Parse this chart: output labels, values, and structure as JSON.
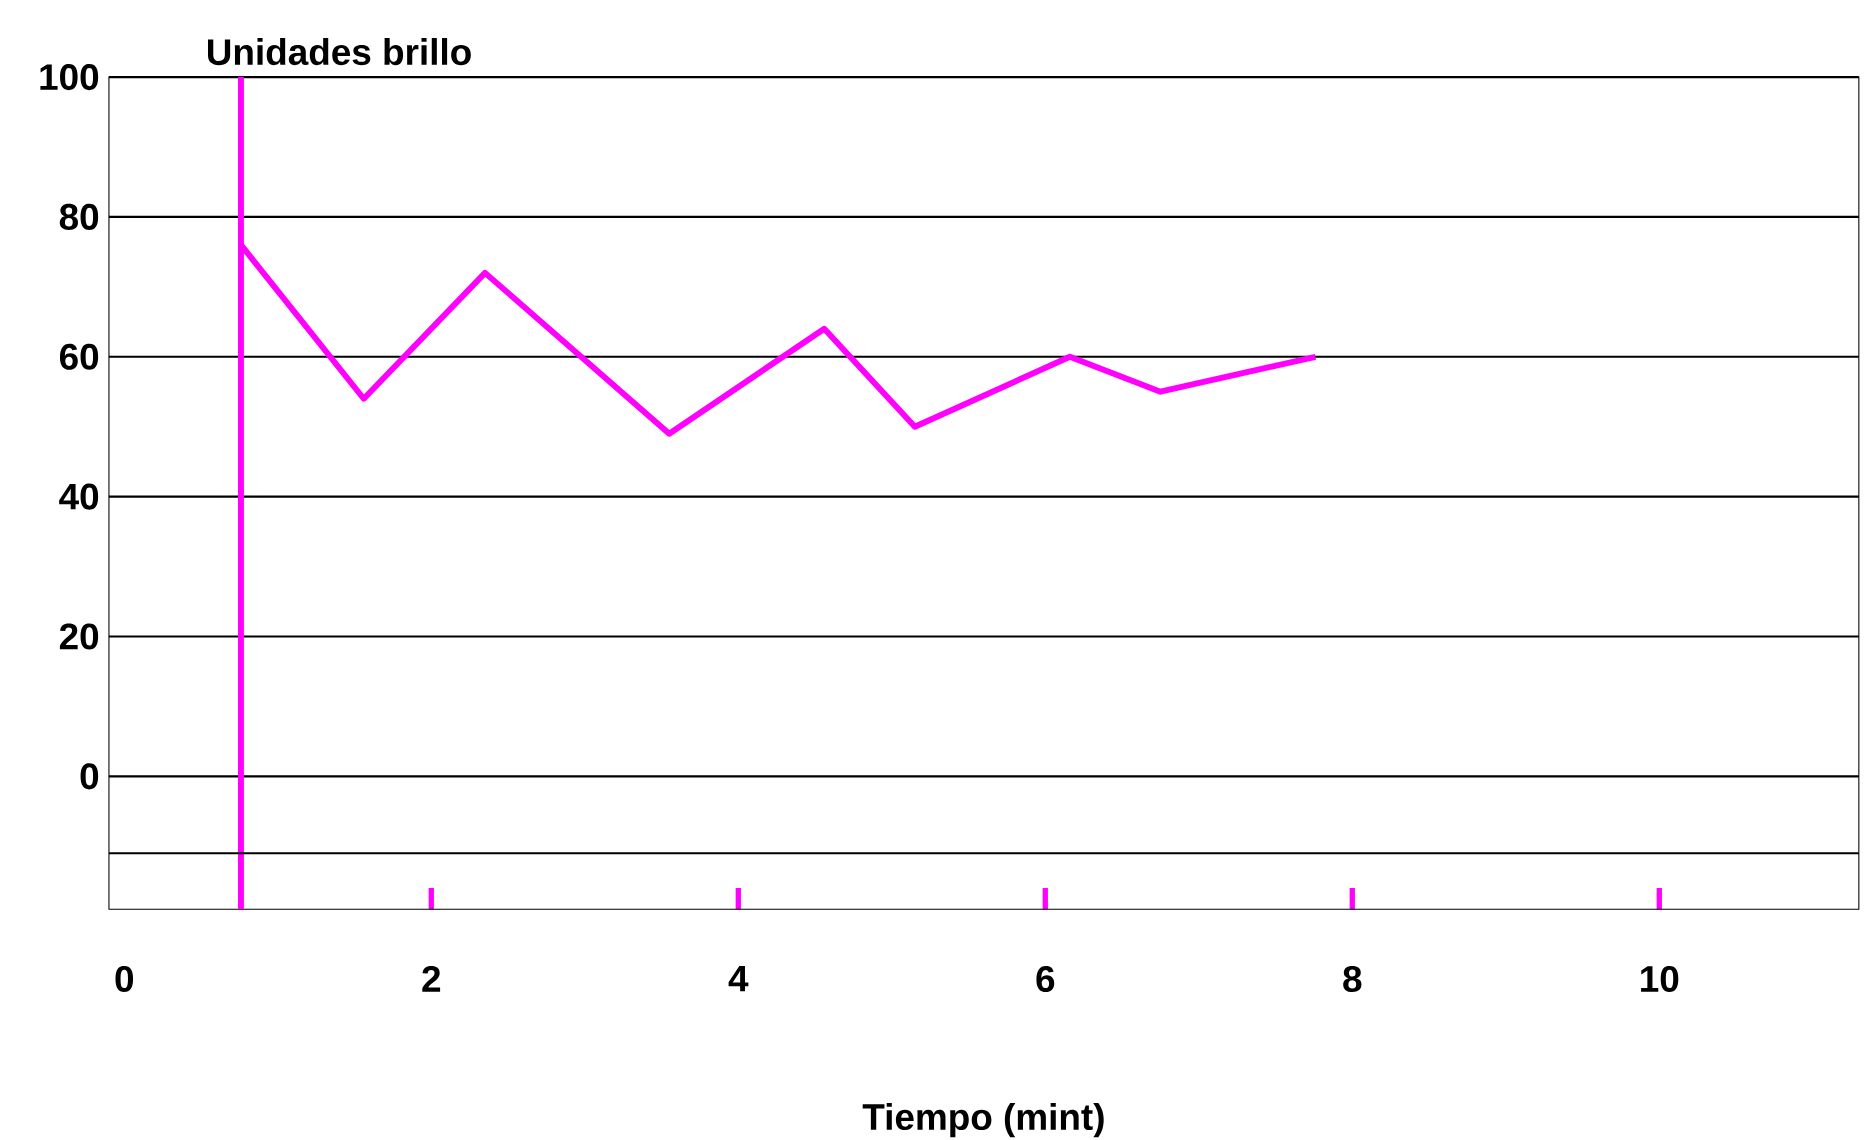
{
  "chart_data": {
    "type": "line",
    "ylabel": "Unidades brillo",
    "xlabel": "Tiempo (mint)",
    "x": [
      0.76,
      1.56,
      2.35,
      3.55,
      4.56,
      5.15,
      6.16,
      6.75,
      7.76
    ],
    "series": [
      {
        "color": "#ff00ff",
        "values": [
          76,
          54,
          72,
          49,
          64,
          50,
          60,
          55,
          60
        ]
      }
    ],
    "xlim": [
      -0.1,
      11.3
    ],
    "xticks": [
      0,
      2,
      4,
      6,
      8,
      10
    ],
    "ylim": [
      -19,
      100
    ],
    "yticks": [
      0,
      20,
      40,
      60,
      80,
      100
    ],
    "grid": "y",
    "marker": "none",
    "line_style": "solid",
    "ref_lines": [
      {
        "axis": "x",
        "value": 0.76,
        "color": "#ff00ff"
      },
      {
        "axis": "y",
        "value": -11,
        "color": "#000000"
      }
    ]
  }
}
